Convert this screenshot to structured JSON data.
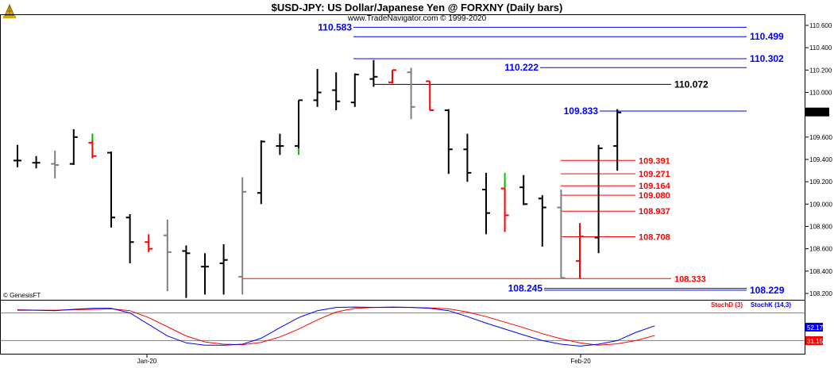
{
  "title": "$USD-JPY:  US Dollar/Japanese Yen @ FORXNY  (Daily bars)",
  "subtitle": "www.TradeNavigator.com © 1999-2020",
  "copyright": "© GenesisFT",
  "logo_icon": "oil-derrick-icon",
  "colors": {
    "bar": "#000000",
    "bar_red": "#ff0000",
    "bar_gray": "#808080",
    "bar_green": "#00cc00",
    "blue_level": "#0000ff",
    "red_level": "#ff0000",
    "black_level": "#000000",
    "stoch_d": "#ff0000",
    "stoch_k": "#0000ff"
  },
  "chart_data": {
    "type": "ohlc",
    "y_axis": {
      "ticks": [
        "110.600",
        "110.400",
        "110.200",
        "110.000",
        "109.821",
        "109.600",
        "109.400",
        "109.200",
        "109.000",
        "108.800",
        "108.600",
        "108.400",
        "108.200"
      ],
      "ylim": [
        108.13,
        110.7
      ]
    },
    "x_ticks": [
      "Jan-20",
      "Feb-20"
    ],
    "current_price": "109.821",
    "bars": [
      {
        "o": 109.39,
        "h": 109.53,
        "l": 109.33,
        "c": 109.39,
        "color": "black"
      },
      {
        "o": 109.37,
        "h": 109.43,
        "l": 109.32,
        "c": 109.37,
        "color": "black"
      },
      {
        "o": 109.36,
        "h": 109.48,
        "l": 109.23,
        "c": 109.35,
        "color": "gray"
      },
      {
        "o": 109.36,
        "h": 109.67,
        "l": 109.35,
        "c": 109.6,
        "color": "black"
      },
      {
        "o": 109.55,
        "h": 109.63,
        "l": 109.41,
        "c": 109.43,
        "color": "red"
      },
      {
        "o": 109.46,
        "h": 109.47,
        "l": 108.79,
        "c": 108.88,
        "color": "black"
      },
      {
        "o": 108.88,
        "h": 108.91,
        "l": 108.47,
        "c": 108.66,
        "color": "black"
      },
      {
        "o": 108.66,
        "h": 108.73,
        "l": 108.57,
        "c": 108.6,
        "color": "red"
      },
      {
        "o": 108.72,
        "h": 108.86,
        "l": 108.22,
        "c": 108.57,
        "color": "gray"
      },
      {
        "o": 108.58,
        "h": 108.63,
        "l": 108.16,
        "c": 108.56,
        "color": "black"
      },
      {
        "o": 108.44,
        "h": 108.56,
        "l": 108.19,
        "c": 108.44,
        "color": "black"
      },
      {
        "o": 108.47,
        "h": 108.64,
        "l": 108.19,
        "c": 108.5,
        "color": "black"
      },
      {
        "o": 108.35,
        "h": 109.24,
        "l": 108.19,
        "c": 109.11,
        "color": "gray"
      },
      {
        "o": 109.1,
        "h": 109.57,
        "l": 109.0,
        "c": 109.56,
        "color": "black"
      },
      {
        "o": 109.52,
        "h": 109.63,
        "l": 109.44,
        "c": 109.52,
        "color": "black"
      },
      {
        "o": 109.52,
        "h": 109.93,
        "l": 109.47,
        "c": 109.93,
        "color": "black"
      },
      {
        "o": 109.93,
        "h": 110.21,
        "l": 109.87,
        "c": 110.0,
        "color": "black"
      },
      {
        "o": 110.02,
        "h": 110.18,
        "l": 109.84,
        "c": 109.92,
        "color": "black"
      },
      {
        "o": 109.91,
        "h": 110.17,
        "l": 109.87,
        "c": 110.16,
        "color": "black"
      },
      {
        "o": 110.12,
        "h": 110.29,
        "l": 110.05,
        "c": 110.14,
        "color": "black"
      },
      {
        "o": 110.09,
        "h": 110.2,
        "l": 110.08,
        "c": 110.2,
        "color": "red"
      },
      {
        "o": 110.18,
        "h": 110.22,
        "l": 109.76,
        "c": 109.87,
        "color": "gray"
      },
      {
        "o": 110.1,
        "h": 110.1,
        "l": 109.84,
        "c": 109.84,
        "color": "red"
      },
      {
        "o": 109.84,
        "h": 109.85,
        "l": 109.27,
        "c": 109.49,
        "color": "black"
      },
      {
        "o": 109.49,
        "h": 109.63,
        "l": 109.2,
        "c": 109.28,
        "color": "black"
      },
      {
        "o": 109.13,
        "h": 109.28,
        "l": 108.73,
        "c": 108.92,
        "color": "black"
      },
      {
        "o": 109.14,
        "h": 109.21,
        "l": 108.75,
        "c": 108.9,
        "color": "red"
      },
      {
        "o": 109.15,
        "h": 109.26,
        "l": 108.99,
        "c": 109.0,
        "color": "black"
      },
      {
        "o": 109.05,
        "h": 109.08,
        "l": 108.62,
        "c": 108.97,
        "color": "black"
      },
      {
        "o": 108.97,
        "h": 109.13,
        "l": 108.33,
        "c": 108.34,
        "color": "gray"
      },
      {
        "o": 108.49,
        "h": 108.83,
        "l": 108.33,
        "c": 108.71,
        "color": "red"
      },
      {
        "o": 108.7,
        "h": 109.53,
        "l": 108.56,
        "c": 109.5,
        "color": "black"
      },
      {
        "o": 109.52,
        "h": 109.85,
        "l": 109.3,
        "c": 109.82,
        "color": "black"
      }
    ],
    "levels": [
      {
        "label": "110.583",
        "value": 110.583,
        "color": "blue",
        "label_side": "left"
      },
      {
        "label": "110.499",
        "value": 110.499,
        "color": "blue",
        "label_side": "right"
      },
      {
        "label": "110.302",
        "value": 110.302,
        "color": "blue",
        "label_side": "right"
      },
      {
        "label": "110.222",
        "value": 110.222,
        "color": "blue",
        "label_side": "left"
      },
      {
        "label": "110.072",
        "value": 110.072,
        "color": "black",
        "label_side": "right"
      },
      {
        "label": "109.833",
        "value": 109.833,
        "color": "blue",
        "label_side": "left"
      },
      {
        "label": "109.391",
        "value": 109.391,
        "color": "red",
        "label_side": "right"
      },
      {
        "label": "109.271",
        "value": 109.271,
        "color": "red",
        "label_side": "right"
      },
      {
        "label": "109.164",
        "value": 109.164,
        "color": "red",
        "label_side": "right"
      },
      {
        "label": "109.080",
        "value": 109.08,
        "color": "red",
        "label_side": "right"
      },
      {
        "label": "108.937",
        "value": 108.937,
        "color": "red",
        "label_side": "right"
      },
      {
        "label": "108.708",
        "value": 108.708,
        "color": "red",
        "label_side": "right"
      },
      {
        "label": "108.333",
        "value": 108.333,
        "color": "red",
        "label_side": "right"
      },
      {
        "label": "108.245",
        "value": 108.245,
        "color": "blue",
        "label_side": "left"
      },
      {
        "label": "108.229",
        "value": 108.229,
        "color": "blue",
        "label_side": "right"
      }
    ],
    "stochastic": {
      "label_d": "StochD (3)",
      "label_k": "StochK (14,3)",
      "value_k": "52.17",
      "value_d": "31.15",
      "k_values": [
        86,
        86,
        85,
        88,
        90,
        90,
        80,
        55,
        30,
        15,
        10,
        10,
        12,
        25,
        48,
        70,
        85,
        92,
        93,
        92,
        93,
        92,
        90,
        85,
        72,
        58,
        45,
        32,
        20,
        12,
        8,
        12,
        20,
        38,
        52
      ],
      "d_values": [
        87,
        86,
        86,
        87,
        88,
        89,
        85,
        70,
        50,
        30,
        17,
        12,
        11,
        16,
        28,
        45,
        65,
        82,
        90,
        92,
        92,
        92,
        91,
        89,
        82,
        72,
        60,
        48,
        35,
        24,
        15,
        10,
        13,
        20,
        31
      ]
    }
  }
}
